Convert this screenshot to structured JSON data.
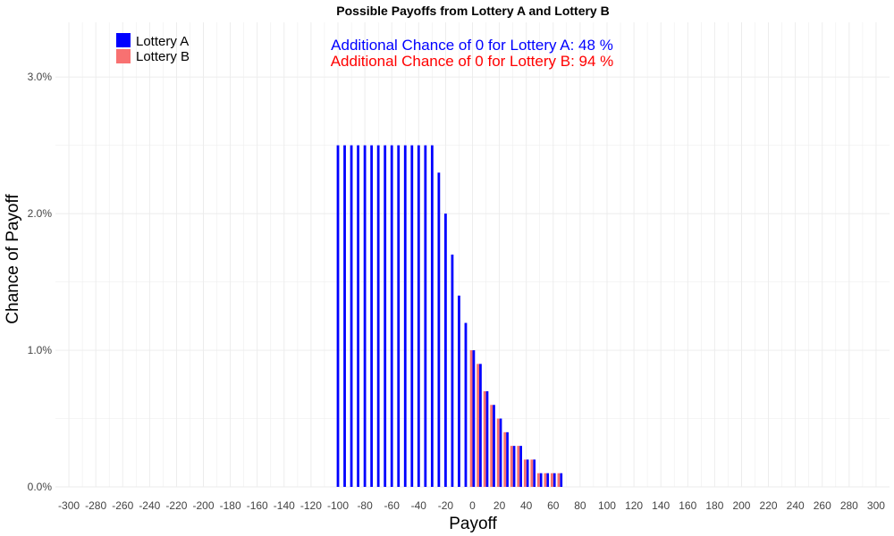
{
  "chart_data": {
    "type": "bar",
    "title": "Possible Payoffs from Lottery A and Lottery B",
    "xlabel": "Payoff",
    "ylabel": "Chance of Payoff",
    "xlim": [
      -310,
      310
    ],
    "ylim": [
      0,
      3.4
    ],
    "x_ticks": [
      -300,
      -280,
      -260,
      -240,
      -220,
      -200,
      -180,
      -160,
      -140,
      -120,
      -100,
      -80,
      -60,
      -40,
      -20,
      0,
      20,
      40,
      60,
      80,
      100,
      120,
      140,
      160,
      180,
      200,
      220,
      240,
      260,
      280,
      300
    ],
    "y_ticks": [
      0,
      1,
      2,
      3
    ],
    "y_tick_labels": [
      "0.0%",
      "1.0%",
      "2.0%",
      "3.0%"
    ],
    "grid": true,
    "legend_position": "top-left",
    "series": [
      {
        "name": "Lottery A",
        "color": "#0000ff",
        "x": [
          -100,
          -95,
          -90,
          -85,
          -80,
          -75,
          -70,
          -65,
          -60,
          -55,
          -50,
          -45,
          -40,
          -35,
          -30,
          -25,
          -20,
          -15,
          -10,
          -5,
          0,
          5,
          10,
          15,
          20,
          25,
          30,
          35,
          40,
          45,
          50,
          55,
          60,
          65
        ],
        "values": [
          2.5,
          2.5,
          2.5,
          2.5,
          2.5,
          2.5,
          2.5,
          2.5,
          2.5,
          2.5,
          2.5,
          2.5,
          2.5,
          2.5,
          2.5,
          2.3,
          2.0,
          1.7,
          1.4,
          1.2,
          1.0,
          0.9,
          0.7,
          0.6,
          0.5,
          0.4,
          0.3,
          0.3,
          0.2,
          0.2,
          0.1,
          0.1,
          0.1,
          0.1
        ]
      },
      {
        "name": "Lottery B",
        "color": "#f87171",
        "x": [
          0,
          5,
          10,
          15,
          20,
          25,
          30,
          35,
          40,
          45,
          50,
          55,
          60,
          65
        ],
        "values": [
          1.0,
          0.9,
          0.7,
          0.6,
          0.5,
          0.4,
          0.3,
          0.3,
          0.2,
          0.2,
          0.1,
          0.1,
          0.1,
          0.1
        ]
      }
    ],
    "annotations": [
      {
        "text": "Additional Chance of 0 for Lottery A:  48 %",
        "color": "#0000ff"
      },
      {
        "text": "Additional Chance of 0 for Lottery B:  94 %",
        "color": "#ff0000"
      }
    ]
  }
}
